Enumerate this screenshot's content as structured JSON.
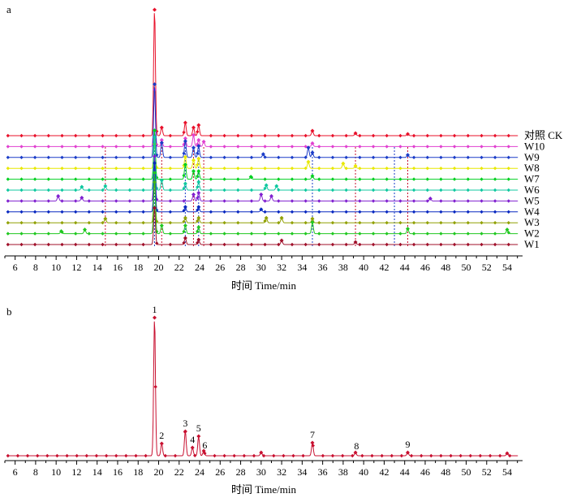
{
  "chart_data": [
    {
      "panel": "a",
      "type": "line",
      "xlabel": "时间 Time/min",
      "ylabel": "",
      "xlim": [
        5,
        55.5
      ],
      "x_ticks": [
        6,
        8,
        10,
        12,
        14,
        16,
        18,
        20,
        22,
        24,
        26,
        28,
        30,
        32,
        34,
        36,
        38,
        40,
        42,
        44,
        46,
        48,
        50,
        52,
        54
      ],
      "grid": false,
      "series": [
        {
          "name": "对照  CK",
          "color": "#e8102a",
          "peaks": [
            [
              19.6,
              155
            ],
            [
              20.3,
              10
            ],
            [
              22.6,
              16
            ],
            [
              23.4,
              10
            ],
            [
              23.9,
              13
            ],
            [
              35.0,
              6
            ],
            [
              39.2,
              3
            ],
            [
              44.3,
              2
            ]
          ]
        },
        {
          "name": "W10",
          "color": "#e040d0",
          "peaks": [
            [
              19.6,
              70
            ],
            [
              20.3,
              8
            ],
            [
              22.6,
              10
            ],
            [
              23.4,
              14
            ],
            [
              23.9,
              8
            ],
            [
              24.4,
              6
            ],
            [
              35.0,
              4
            ]
          ]
        },
        {
          "name": "W9",
          "color": "#1a3cc8",
          "peaks": [
            [
              19.6,
              90
            ],
            [
              20.3,
              18
            ],
            [
              22.6,
              20
            ],
            [
              23.4,
              12
            ],
            [
              23.9,
              14
            ],
            [
              30.2,
              4
            ],
            [
              34.6,
              12
            ],
            [
              35.0,
              6
            ],
            [
              44.3,
              3
            ]
          ]
        },
        {
          "name": "W8",
          "color": "#e8e800",
          "peaks": [
            [
              19.6,
              30
            ],
            [
              22.6,
              14
            ],
            [
              23.4,
              10
            ],
            [
              23.9,
              12
            ],
            [
              34.6,
              8
            ],
            [
              38.0,
              6
            ],
            [
              39.2,
              3
            ]
          ]
        },
        {
          "name": "W7",
          "color": "#00d020",
          "peaks": [
            [
              19.6,
              60
            ],
            [
              22.6,
              18
            ],
            [
              23.4,
              10
            ],
            [
              23.9,
              10
            ],
            [
              29.0,
              3
            ],
            [
              35.0,
              4
            ]
          ]
        },
        {
          "name": "W6",
          "color": "#10c8a0",
          "peaks": [
            [
              12.5,
              4
            ],
            [
              14.8,
              5
            ],
            [
              19.6,
              65
            ],
            [
              20.3,
              12
            ],
            [
              22.6,
              8
            ],
            [
              23.9,
              10
            ],
            [
              30.5,
              6
            ],
            [
              31.5,
              5
            ]
          ]
        },
        {
          "name": "W5",
          "color": "#8020d0",
          "peaks": [
            [
              10.2,
              6
            ],
            [
              12.5,
              4
            ],
            [
              19.6,
              55
            ],
            [
              23.4,
              8
            ],
            [
              23.9,
              10
            ],
            [
              30.0,
              8
            ],
            [
              31.0,
              6
            ],
            [
              46.5,
              3
            ]
          ]
        },
        {
          "name": "W4",
          "color": "#0828c0",
          "peaks": [
            [
              19.6,
              60
            ],
            [
              22.6,
              6
            ],
            [
              23.9,
              6
            ],
            [
              30.0,
              3
            ]
          ]
        },
        {
          "name": "W3",
          "color": "#90a000",
          "peaks": [
            [
              14.8,
              5
            ],
            [
              19.6,
              50
            ],
            [
              22.6,
              6
            ],
            [
              23.9,
              6
            ],
            [
              30.5,
              6
            ],
            [
              32.0,
              6
            ],
            [
              35.0,
              5
            ]
          ]
        },
        {
          "name": "W2",
          "color": "#20c820",
          "peaks": [
            [
              10.5,
              3
            ],
            [
              12.8,
              5
            ],
            [
              19.6,
              75
            ],
            [
              20.3,
              10
            ],
            [
              22.6,
              10
            ],
            [
              23.9,
              8
            ],
            [
              35.0,
              14
            ],
            [
              44.3,
              6
            ],
            [
              54.0,
              5
            ]
          ]
        },
        {
          "name": "W1",
          "color": "#a0102a",
          "peaks": [
            [
              19.6,
              45
            ],
            [
              22.6,
              8
            ],
            [
              23.9,
              6
            ],
            [
              32.0,
              5
            ],
            [
              39.2,
              3
            ]
          ]
        }
      ],
      "dashed_guides": [
        14.8,
        19.6,
        20.3,
        22.6,
        23.4,
        23.9,
        24.4,
        35.0,
        39.2,
        43.0,
        44.3
      ]
    },
    {
      "panel": "b",
      "type": "line",
      "xlabel": "时间 Time/min",
      "ylabel": "",
      "xlim": [
        5,
        55.5
      ],
      "x_ticks": [
        6,
        8,
        10,
        12,
        14,
        16,
        18,
        20,
        22,
        24,
        26,
        28,
        30,
        32,
        34,
        36,
        38,
        40,
        42,
        44,
        46,
        48,
        50,
        52,
        54
      ],
      "grid": false,
      "series": [
        {
          "name": "",
          "color": "#c81030",
          "peaks": [
            [
              19.6,
              170
            ],
            [
              20.3,
              15
            ],
            [
              22.6,
              30
            ],
            [
              23.3,
              10
            ],
            [
              23.9,
              24
            ],
            [
              24.4,
              6
            ],
            [
              30.0,
              4
            ],
            [
              35.0,
              16
            ],
            [
              39.2,
              4
            ],
            [
              44.3,
              4
            ],
            [
              54.0,
              3
            ]
          ]
        }
      ],
      "peak_labels": [
        {
          "label": "1",
          "x": 19.6
        },
        {
          "label": "2",
          "x": 20.3
        },
        {
          "label": "3",
          "x": 22.6
        },
        {
          "label": "4",
          "x": 23.3
        },
        {
          "label": "5",
          "x": 23.9
        },
        {
          "label": "6",
          "x": 24.5
        },
        {
          "label": "7",
          "x": 35.0
        },
        {
          "label": "8",
          "x": 39.3
        },
        {
          "label": "9",
          "x": 44.3
        }
      ]
    }
  ]
}
